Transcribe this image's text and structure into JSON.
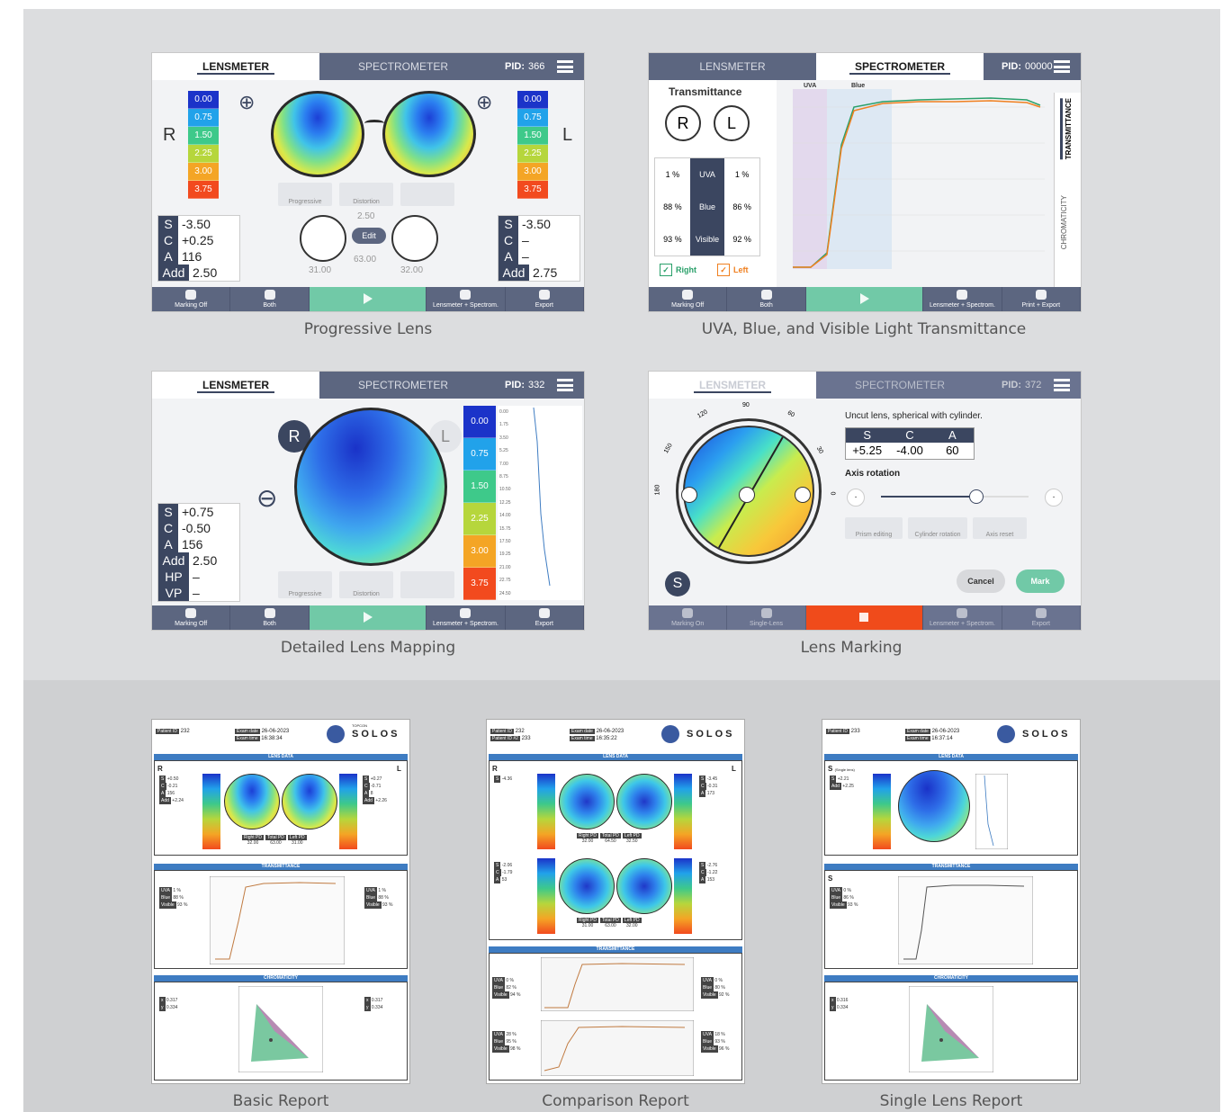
{
  "screens": {
    "s1": {
      "tab_left": "LENSMETER",
      "tab_right": "SPECTROMETER",
      "pid_label": "PID:",
      "pid": "366",
      "right_label": "R",
      "left_label": "L",
      "scale": [
        "0.00",
        "0.75",
        "1.50",
        "2.25",
        "3.00",
        "3.75"
      ],
      "right_vals": {
        "S": "-3.50",
        "C": "+0.25",
        "A": "116",
        "Add": "2.50"
      },
      "left_vals": {
        "S": "-3.50",
        "C": "–",
        "A": "–",
        "Add": "2.75"
      },
      "toggles": [
        "Progressive",
        "Distortion",
        ""
      ],
      "pd": {
        "top": "2.50",
        "edit": "Edit",
        "right": "31.00",
        "total": "63.00",
        "left": "32.00"
      },
      "bottom": [
        "Marking Off",
        "Both",
        "",
        "Lensmeter + Spectrom.",
        "Export"
      ],
      "caption": "Progressive Lens"
    },
    "s2": {
      "tab_left": "LENSMETER",
      "tab_right": "SPECTROMETER",
      "pid_label": "PID:",
      "pid": "00000",
      "title": "Transmittance",
      "r": "R",
      "l": "L",
      "table": [
        [
          "1 %",
          "UVA",
          "1 %"
        ],
        [
          "88 %",
          "Blue",
          "86 %"
        ],
        [
          "93 %",
          "Visible",
          "92 %"
        ]
      ],
      "right_cb": "Right",
      "left_cb": "Left",
      "chart_labels": {
        "uva": "UVA",
        "blue": "Blue"
      },
      "side_tabs": [
        "TRANSMITTANCE",
        "CHROMATICITY"
      ],
      "bottom": [
        "Marking Off",
        "Both",
        "",
        "Lensmeter + Spectrom.",
        "Print + Export"
      ],
      "caption": "UVA, Blue, and Visible Light Transmittance"
    },
    "s3": {
      "tab_left": "LENSMETER",
      "tab_right": "SPECTROMETER",
      "pid_label": "PID:",
      "pid": "332",
      "r": "R",
      "l": "L",
      "scale": [
        "0.00",
        "0.75",
        "1.50",
        "2.25",
        "3.00",
        "3.75"
      ],
      "vals": {
        "S": "+0.75",
        "C": "-0.50",
        "A": "156",
        "Add": "2.50",
        "HP": "–",
        "VP": "–"
      },
      "profile_ticks": [
        "0.00",
        "1.75",
        "3.50",
        "5.25",
        "7.00",
        "8.75",
        "10.50",
        "12.25",
        "14.00",
        "15.75",
        "17.50",
        "19.25",
        "21.00",
        "22.75",
        "24.50"
      ],
      "toggles": [
        "Progressive",
        "Distortion",
        ""
      ],
      "bottom": [
        "Marking Off",
        "Both",
        "",
        "Lensmeter + Spectrom.",
        "Export"
      ],
      "caption": "Detailed Lens Mapping"
    },
    "s4": {
      "tab_left": "LENSMETER",
      "tab_right": "SPECTROMETER",
      "pid_label": "PID:",
      "pid": "372",
      "desc": "Uncut lens, spherical with cylinder.",
      "head": [
        "S",
        "C",
        "A"
      ],
      "vals": [
        "+5.25",
        "-4.00",
        "60"
      ],
      "axis_title": "Axis rotation",
      "angles": [
        "90",
        "120",
        "60",
        "150",
        "30",
        "180",
        "0"
      ],
      "s_badge": "S",
      "tools": [
        "Prism editing",
        "Cylinder rotation",
        "Axis reset"
      ],
      "cancel": "Cancel",
      "mark": "Mark",
      "bottom": [
        "Marking On",
        "Single-Lens",
        "",
        "Lensmeter + Spectrom.",
        "Export"
      ],
      "caption": "Lens Marking"
    }
  },
  "reports": {
    "basic": {
      "caption": "Basic Report",
      "patient_id": "Patient ID",
      "pid": "232",
      "exam_date": "Exam date",
      "date": "26-06-2023",
      "exam_time": "Exam time",
      "time": "16:38:34",
      "brand": "SOLOS",
      "maker": "TOPCON",
      "lens_data": "LENS DATA",
      "transmittance": "TRANSMITTANCE",
      "chromaticity": "CHROMATICITY",
      "r": "R",
      "l": "L",
      "right_eye": "(Right eye)",
      "left_eye": "(Left eye)",
      "rvals": [
        "+0.50",
        "-0.21",
        "156",
        "+2.24",
        "–",
        "–"
      ],
      "lvals": [
        "+0.27",
        "-0.71",
        "8",
        "+2.26",
        "–",
        "–"
      ],
      "pd": [
        "Right PD",
        "Total PD",
        "Left PD",
        "32.00",
        "63.00",
        "31.00"
      ],
      "trans_r": [
        "1 %",
        "88 %",
        "93 %"
      ],
      "trans_l": [
        "1 %",
        "88 %",
        "93 %"
      ],
      "chrom_r": [
        "0.317",
        "0.334"
      ],
      "chrom_l": [
        "0.317",
        "0.334"
      ]
    },
    "comparison": {
      "caption": "Comparison Report",
      "patient_id": "Patient ID",
      "patient_id2": "Patient ID #2",
      "pid": "232",
      "pid2": "233",
      "exam_date": "Exam date",
      "date": "26-06-2023",
      "exam_time": "Exam time",
      "time": "16:35:22",
      "brand": "SOLOS",
      "lens_data": "LENS DATA",
      "transmittance": "TRANSMITTANCE",
      "r": "R",
      "l": "L",
      "pd1": [
        "Right PD",
        "Total PD",
        "Left PD",
        "32.00",
        "64.50",
        "32.50"
      ],
      "pd2": [
        "Right PD",
        "Total PD",
        "Left PD",
        "31.00",
        "63.00",
        "32.00"
      ],
      "v1r": [
        "-4.36"
      ],
      "v1l": [
        "-3.45",
        "-0.31",
        "173"
      ],
      "v2r": [
        "-2.06",
        "-1.79",
        "53"
      ],
      "v2l": [
        "-2.76",
        "-1.22",
        "153"
      ],
      "t1r": [
        "0 %",
        "82 %",
        "94 %"
      ],
      "t1l": [
        "0 %",
        "80 %",
        "92 %"
      ],
      "t2r": [
        "28 %",
        "95 %",
        "98 %"
      ],
      "t2l": [
        "18 %",
        "93 %",
        "96 %"
      ]
    },
    "single": {
      "caption": "Single Lens Report",
      "patient_id": "Patient ID",
      "pid": "233",
      "exam_date": "Exam date",
      "date": "26-06-2023",
      "exam_time": "Exam time",
      "time": "16:37:14",
      "brand": "SOLOS",
      "lens_data": "LENS DATA",
      "transmittance": "TRANSMITTANCE",
      "chromaticity": "CHROMATICITY",
      "s": "S",
      "single_lens": "(Single lens)",
      "vals": [
        "+2.21",
        "+2.25"
      ],
      "trans": [
        "0 %",
        "86 %",
        "93 %"
      ],
      "chrom": [
        "0.316",
        "0.334"
      ]
    }
  }
}
